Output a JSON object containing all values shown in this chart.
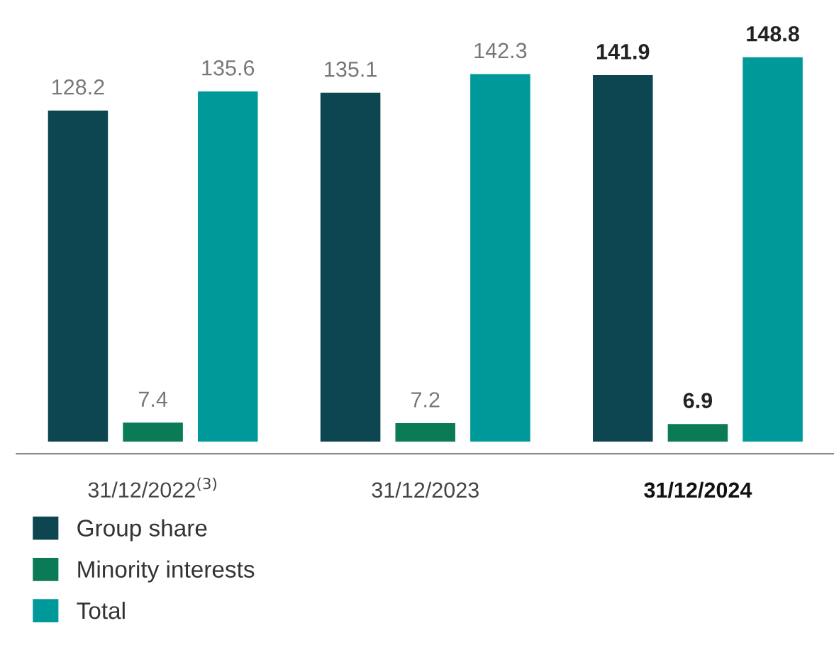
{
  "chart_data": {
    "type": "bar",
    "categories": [
      "31/12/2022$^{(3)}$",
      "31/12/2023",
      "31/12/2024"
    ],
    "series": [
      {
        "name": "Group share",
        "color": "#0d4550",
        "values": [
          128.2,
          135.1,
          141.9
        ]
      },
      {
        "name": "Minority interests",
        "color": "#0b7a57",
        "values": [
          7.4,
          7.2,
          6.9
        ]
      },
      {
        "name": "Total",
        "color": "#009999",
        "values": [
          135.6,
          142.3,
          148.8
        ]
      }
    ],
    "data_labels": true,
    "legend": "bottom left",
    "grid": false
  }
}
